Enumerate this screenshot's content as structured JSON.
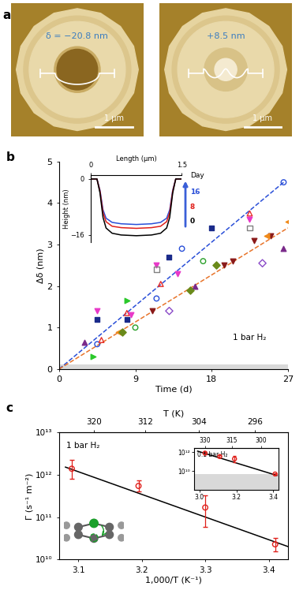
{
  "chart_data": [
    {
      "type": "image",
      "label": "a",
      "images": [
        {
          "annotation": "δ = −20.8 nm",
          "scale_bar": "1 μm"
        },
        {
          "annotation": "+8.5 nm",
          "scale_bar": "1 μm"
        }
      ]
    },
    {
      "type": "scatter",
      "label": "b",
      "x_label": "Time (d)",
      "y_label": "Δδ (nm)",
      "xlim": [
        0,
        27
      ],
      "xticks": [
        0,
        9,
        18,
        27
      ],
      "ylim": [
        0,
        5
      ],
      "yticks": [
        0,
        1,
        2,
        3,
        4,
        5
      ],
      "annotation": "1 bar H₂",
      "band": [
        0,
        0.12
      ],
      "series": [
        {
          "type": "scatter",
          "marker": "open_circle",
          "color": "#2a4fd8",
          "x": [
            4.5,
            11.5,
            14.5,
            26.5
          ],
          "values": [
            0.6,
            1.7,
            2.9,
            4.5
          ]
        },
        {
          "type": "scatter",
          "marker": "open_triangle_up",
          "color": "#e8302a",
          "x": [
            5,
            8,
            12,
            22.5
          ],
          "values": [
            0.7,
            1.35,
            2.05,
            3.75
          ]
        },
        {
          "type": "scatter",
          "marker": "triangle_down",
          "color": "#e838c8",
          "x": [
            4.5,
            8.5,
            11.5,
            14,
            22.5
          ],
          "values": [
            1.4,
            1.3,
            2.5,
            2.3,
            3.6
          ]
        },
        {
          "type": "scatter",
          "marker": "square",
          "color": "#1a2a8a",
          "x": [
            4.5,
            8,
            13,
            18
          ],
          "values": [
            1.2,
            1.2,
            2.7,
            3.4
          ]
        },
        {
          "type": "scatter",
          "marker": "open_square",
          "color": "#808080",
          "x": [
            11.5,
            22.5
          ],
          "values": [
            2.4,
            3.4
          ]
        },
        {
          "type": "scatter",
          "marker": "open_circle",
          "color": "#2aa02a",
          "x": [
            9,
            17
          ],
          "values": [
            1.0,
            2.6
          ]
        },
        {
          "type": "scatter",
          "marker": "triangle_down",
          "color": "#8a1a1a",
          "x": [
            11,
            19.5,
            20.5,
            23,
            25
          ],
          "values": [
            1.4,
            2.5,
            2.6,
            3.1,
            3.2
          ]
        },
        {
          "type": "scatter",
          "marker": "triangle_up",
          "color": "#7a2a8a",
          "x": [
            3,
            16,
            26.5
          ],
          "values": [
            0.65,
            2.0,
            2.9
          ]
        },
        {
          "type": "scatter",
          "marker": "triangle_left",
          "color": "#f08a1a",
          "x": [
            7,
            24.5,
            27
          ],
          "values": [
            0.9,
            3.2,
            3.55
          ]
        },
        {
          "type": "scatter",
          "marker": "diamond",
          "color": "#6a8a1a",
          "x": [
            7.5,
            15.5,
            18.5
          ],
          "values": [
            0.9,
            1.9,
            2.5
          ]
        },
        {
          "type": "scatter",
          "marker": "open_diamond",
          "color": "#8a4ac8",
          "x": [
            13,
            24
          ],
          "values": [
            1.4,
            2.55
          ]
        },
        {
          "type": "scatter",
          "marker": "triangle_right",
          "color": "#2ac82a",
          "x": [
            4,
            8
          ],
          "values": [
            0.3,
            1.65
          ]
        },
        {
          "type": "line",
          "line_style": "dashed",
          "color": "#2a4fd8",
          "x": [
            0,
            26.5
          ],
          "values": [
            0,
            4.5
          ]
        },
        {
          "type": "line",
          "line_style": "dashed",
          "color": "#e8742a",
          "x": [
            0,
            27
          ],
          "values": [
            0,
            3.4
          ]
        }
      ],
      "inset": {
        "type": "line",
        "x_label": "Length (μm)",
        "y_label": "Height (nm)",
        "xlim": [
          0,
          1.5
        ],
        "xticks": [
          0,
          1.5
        ],
        "ylim": [
          -18,
          1
        ],
        "yticks": [
          {
            "value": -16,
            "label": "−16"
          },
          0
        ],
        "annotation": "Day",
        "x": [
          0,
          0.1,
          0.15,
          0.2,
          0.25,
          0.35,
          0.5,
          0.75,
          1.0,
          1.15,
          1.25,
          1.3,
          1.35,
          1.4,
          1.5
        ],
        "series": [
          {
            "name": "16",
            "color": "#2a4fd8",
            "values": [
              0,
              0,
              -3.2,
              -8.8,
              -11.2,
              -12.4,
              -12.8,
              -13,
              -12.8,
              -12.4,
              -11.2,
              -8.8,
              -3.2,
              0,
              0
            ]
          },
          {
            "name": "8",
            "color": "#e0201b",
            "values": [
              0,
              0,
              -3.5,
              -9.6,
              -12.2,
              -13.5,
              -13.9,
              -14.1,
              -13.9,
              -13.5,
              -12.2,
              -9.6,
              -3.5,
              0,
              0
            ]
          },
          {
            "name": "0",
            "color": "#000000",
            "values": [
              0,
              0,
              -4,
              -11,
              -14,
              -15.5,
              -16,
              -16.2,
              -16,
              -15.5,
              -14,
              -11,
              -4,
              0,
              0
            ]
          }
        ]
      }
    },
    {
      "type": "scatter",
      "label": "c",
      "log": "y",
      "x_label": "1,000/T (K⁻¹)",
      "y_label": "Γ (s⁻¹ m⁻²)",
      "x2_label": "T (K)",
      "xlim": [
        3.07,
        3.43
      ],
      "xticks": [
        3.1,
        3.2,
        3.3,
        3.4
      ],
      "x2ticks": [
        320,
        312,
        304,
        296
      ],
      "ylim": [
        10000000000.0,
        10000000000000.0
      ],
      "yticks": [
        {
          "value": 10000000000.0,
          "label": "10¹⁰"
        },
        {
          "value": 100000000000.0,
          "label": "10¹¹"
        },
        {
          "value": 1000000000000.0,
          "label": "10¹²"
        },
        {
          "value": 10000000000000.0,
          "label": "10¹³"
        }
      ],
      "annotation": "1 bar H₂",
      "series": [
        {
          "type": "scatter",
          "marker": "open_circle",
          "color": "#e0201b",
          "x": [
            3.09,
            3.195,
            3.3,
            3.41
          ],
          "values": [
            1400000000000.0,
            550000000000.0,
            170000000000.0,
            23000000000.0
          ],
          "error_low": [
            800000000000.0,
            400000000000.0,
            60000000000.0,
            16000000000.0
          ],
          "error_high": [
            2300000000000.0,
            750000000000.0,
            330000000000.0,
            32000000000.0
          ]
        },
        {
          "type": "line",
          "line_style": "solid",
          "color": "#000000",
          "x": [
            3.08,
            3.43
          ],
          "values": [
            1530000000000.0,
            20400000000.0
          ]
        }
      ],
      "inset": {
        "type": "scatter",
        "log": "y",
        "annotation": "0.1 bar H₂",
        "xlim": [
          2.97,
          3.43
        ],
        "xticks": [
          3.0,
          3.2,
          3.4
        ],
        "x2ticks": [
          330,
          315,
          300
        ],
        "ylim": [
          100000000.0,
          3000000000000.0
        ],
        "yticks": [
          {
            "value": 10000000000.0,
            "label": "10¹⁰"
          },
          {
            "value": 1000000000000.0,
            "label": "10¹²"
          }
        ],
        "band": [
          100000000.0,
          5000000000.0
        ],
        "series": [
          {
            "type": "scatter",
            "marker": "open_circle",
            "color": "#e0201b",
            "x": [
              3.03,
              3.11,
              3.19,
              3.41
            ],
            "values": [
              800000000000.0,
              350000000000.0,
              200000000000.0,
              5000000000.0
            ],
            "error_low": [
              600000000000.0,
              280000000000.0,
              90000000000.0,
              4000000000.0
            ],
            "error_high": [
              1000000000000.0,
              450000000000.0,
              400000000000.0,
              6500000000.0
            ]
          },
          {
            "type": "line",
            "line_style": "solid",
            "color": "#000000",
            "x": [
              2.99,
              3.42
            ],
            "values": [
              1300000000000.0,
              3500000000.0
            ]
          }
        ]
      }
    }
  ]
}
